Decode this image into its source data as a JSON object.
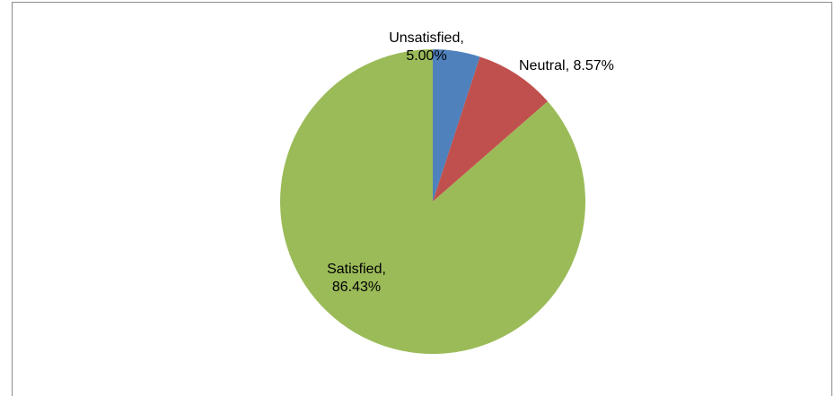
{
  "chart_data": {
    "type": "pie",
    "start_angle_deg": 0,
    "direction": "clockwise",
    "slices": [
      {
        "name": "Unsatisfied",
        "value": 5.0,
        "display": "5.00%",
        "color": "#4F81BD",
        "label_lines": [
          "Unsatisfied,",
          "5.00%"
        ]
      },
      {
        "name": "Neutral",
        "value": 8.57,
        "display": "8.57%",
        "color": "#C0504D",
        "label_lines": [
          "Neutral, 8.57%"
        ]
      },
      {
        "name": "Satisfied",
        "value": 86.43,
        "display": "86.43%",
        "color": "#9BBB59",
        "label_lines": [
          "Satisfied,",
          "86.43%"
        ]
      }
    ]
  }
}
